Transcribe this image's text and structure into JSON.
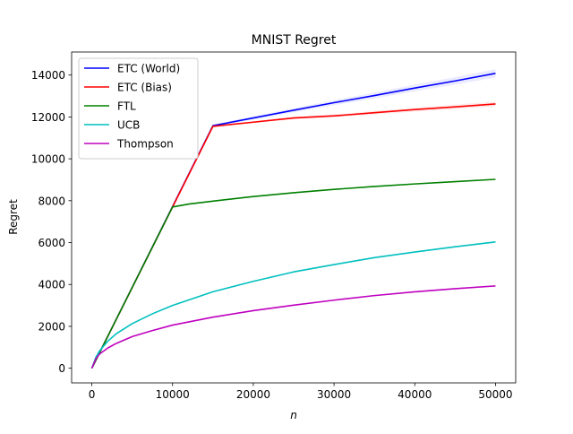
{
  "chart_data": {
    "type": "line",
    "title": "MNIST Regret",
    "xlabel": "n",
    "ylabel": "Regret",
    "xlim": [
      -2500,
      52500
    ],
    "ylim": [
      -700,
      15100
    ],
    "xticks": [
      0,
      10000,
      20000,
      30000,
      40000,
      50000
    ],
    "xtick_labels": [
      "0",
      "10000",
      "20000",
      "30000",
      "40000",
      "50000"
    ],
    "yticks": [
      0,
      2000,
      4000,
      6000,
      8000,
      10000,
      12000,
      14000
    ],
    "ytick_labels": [
      "0",
      "2000",
      "4000",
      "6000",
      "8000",
      "10000",
      "12000",
      "14000"
    ],
    "grid": false,
    "legend_position": "top-left",
    "series": [
      {
        "name": "ETC (World)",
        "color": "#0000ff",
        "x": [
          0,
          15000,
          20000,
          25000,
          30000,
          35000,
          40000,
          45000,
          50000
        ],
        "y": [
          0,
          11580,
          11950,
          12320,
          12680,
          13020,
          13380,
          13720,
          14080
        ],
        "band": 200
      },
      {
        "name": "ETC (Bias)",
        "color": "#ff0000",
        "x": [
          0,
          15000,
          20000,
          25000,
          30000,
          35000,
          40000,
          45000,
          50000
        ],
        "y": [
          0,
          11550,
          11750,
          11950,
          12050,
          12200,
          12350,
          12480,
          12620
        ],
        "band": 120
      },
      {
        "name": "FTL",
        "color": "#008000",
        "x": [
          0,
          10000,
          12000,
          15000,
          20000,
          25000,
          30000,
          35000,
          40000,
          45000,
          50000
        ],
        "y": [
          0,
          7700,
          7840,
          7980,
          8200,
          8380,
          8540,
          8680,
          8800,
          8910,
          9020
        ],
        "band": 0
      },
      {
        "name": "UCB",
        "color": "#00bfbf",
        "x": [
          0,
          500,
          1000,
          2000,
          3000,
          5000,
          7500,
          10000,
          15000,
          20000,
          25000,
          30000,
          35000,
          40000,
          45000,
          50000
        ],
        "y": [
          0,
          520,
          850,
          1300,
          1640,
          2130,
          2600,
          3000,
          3650,
          4150,
          4600,
          4950,
          5280,
          5550,
          5800,
          6030
        ],
        "band": 0
      },
      {
        "name": "Thompson",
        "color": "#bf00bf",
        "x": [
          0,
          500,
          1000,
          2000,
          3000,
          5000,
          7500,
          10000,
          15000,
          20000,
          25000,
          30000,
          35000,
          40000,
          45000,
          50000
        ],
        "y": [
          0,
          450,
          690,
          970,
          1180,
          1510,
          1800,
          2060,
          2440,
          2750,
          3010,
          3250,
          3470,
          3650,
          3800,
          3930
        ],
        "band": 40
      }
    ]
  }
}
